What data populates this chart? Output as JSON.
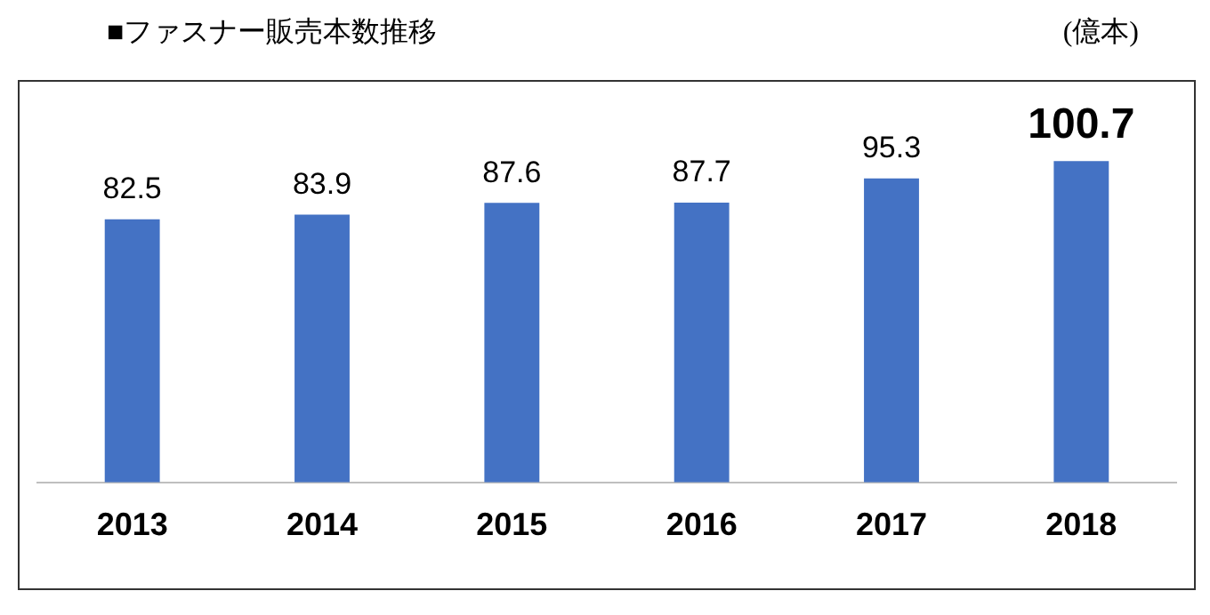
{
  "chart_data": {
    "type": "bar",
    "title": "■ファスナー販売本数推移",
    "ylabel": "(億本)",
    "categories": [
      "2013",
      "2014",
      "2015",
      "2016",
      "2017",
      "2018"
    ],
    "values": [
      82.5,
      83.9,
      87.6,
      87.7,
      95.3,
      100.7
    ],
    "color": "#4472c4",
    "data_labels": true,
    "grid": false,
    "legend": false
  }
}
